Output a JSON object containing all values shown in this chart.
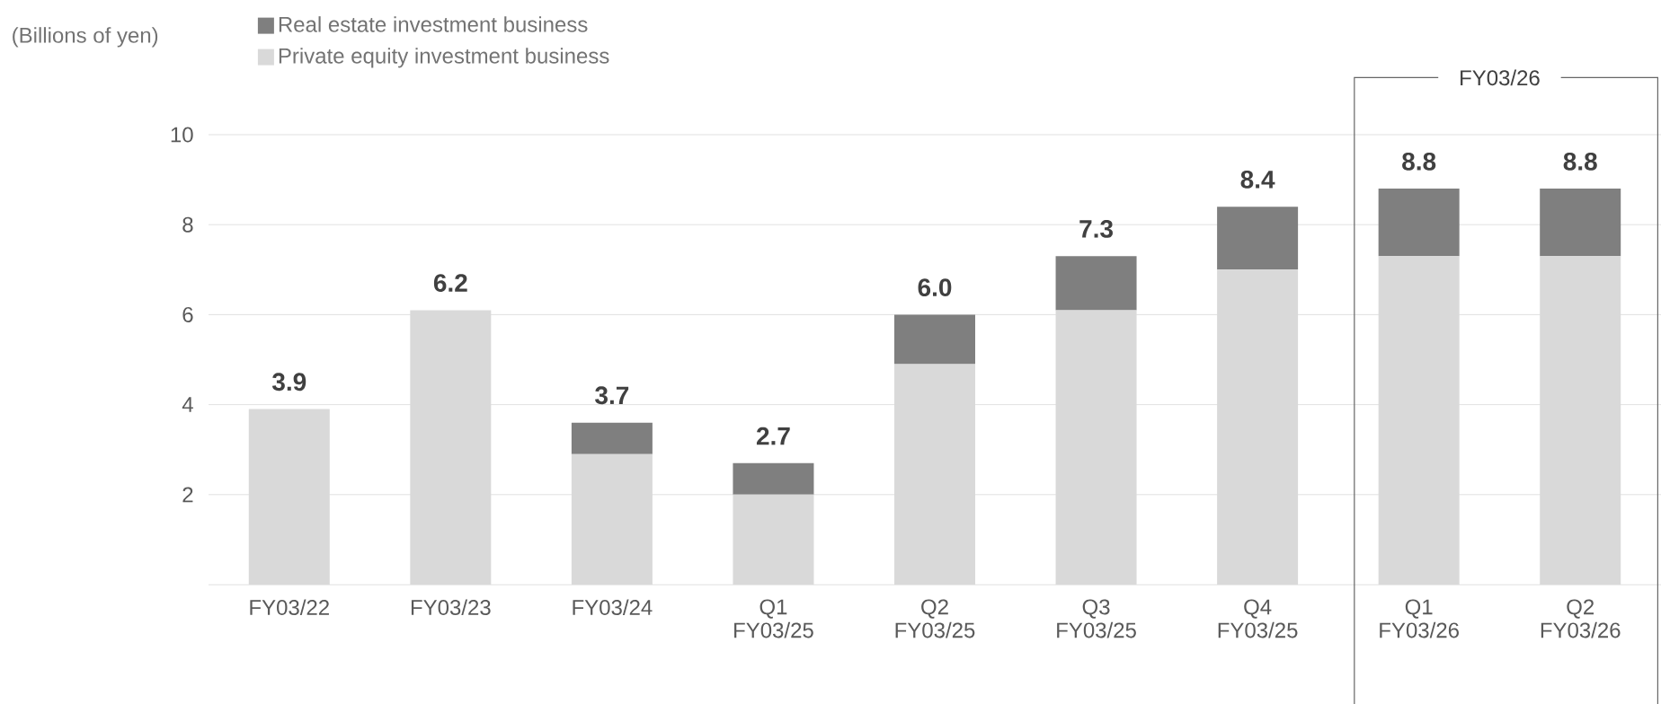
{
  "chart_data": {
    "type": "bar",
    "stacked": true,
    "ylabel": "(Billions of yen)",
    "categories": [
      "FY03/22",
      "FY03/23",
      "FY03/24",
      "Q1 FY03/25",
      "Q2 FY03/25",
      "Q3 FY03/25",
      "Q4 FY03/25",
      "Q1 FY03/26",
      "Q2 FY03/26"
    ],
    "series": [
      {
        "name": "Private equity investment business",
        "color": "#d9d9d9",
        "values": [
          3.9,
          6.1,
          2.9,
          2.0,
          4.9,
          6.1,
          7.0,
          7.3,
          7.3
        ]
      },
      {
        "name": "Real estate investment business",
        "color": "#7f7f7f",
        "values": [
          0,
          0,
          0.7,
          0.7,
          1.1,
          1.2,
          1.4,
          1.5,
          1.5
        ]
      }
    ],
    "totals": [
      "3.9",
      "6.2",
      "3.7",
      "2.7",
      "6.0",
      "7.3",
      "8.4",
      "8.8",
      "8.8"
    ],
    "annotations": [
      "FY03/26"
    ],
    "ylim": [
      0,
      10
    ],
    "yticks": [
      2,
      4,
      6,
      8,
      10
    ],
    "grid": "y",
    "legend": "top left"
  }
}
